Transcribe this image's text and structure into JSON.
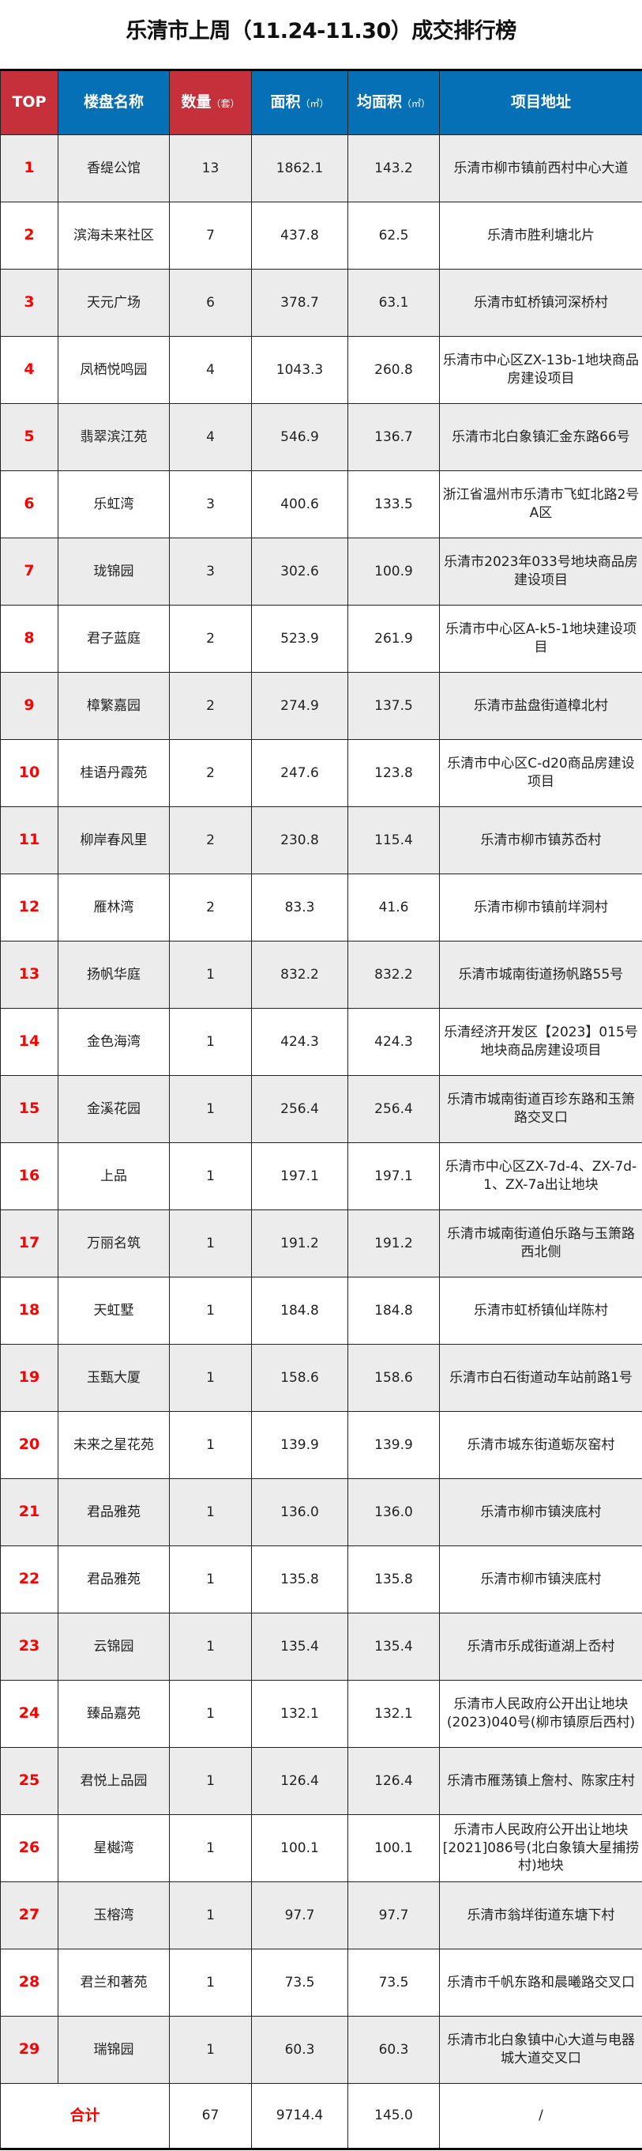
{
  "title": "乐清市上周（11.24-11.30）成交排行榜",
  "colors": {
    "header_blue": "#0670b6",
    "header_red": "#c6303a",
    "rank_red": "#ff0000",
    "row_gray": "#ececec"
  },
  "headers": {
    "rank": "TOP",
    "name": "楼盘名称",
    "count": "数量",
    "count_unit": "（套）",
    "area": "面积",
    "area_unit": "（㎡）",
    "avg_area": "均面积",
    "avg_area_unit": "（㎡）",
    "address": "项目地址"
  },
  "rows": [
    {
      "rank": "1",
      "name": "香缇公馆",
      "count": "13",
      "area": "1862.1",
      "avg": "143.2",
      "address": "乐清市柳市镇前西村中心大道"
    },
    {
      "rank": "2",
      "name": "滨海未来社区",
      "count": "7",
      "area": "437.8",
      "avg": "62.5",
      "address": "乐清市胜利塘北片"
    },
    {
      "rank": "3",
      "name": "天元广场",
      "count": "6",
      "area": "378.7",
      "avg": "63.1",
      "address": "乐清市虹桥镇河深桥村"
    },
    {
      "rank": "4",
      "name": "凤栖悦鸣园",
      "count": "4",
      "area": "1043.3",
      "avg": "260.8",
      "address": "乐清市中心区ZX-13b-1地块商品房建设项目"
    },
    {
      "rank": "5",
      "name": "翡翠滨江苑",
      "count": "4",
      "area": "546.9",
      "avg": "136.7",
      "address": "乐清市北白象镇汇金东路66号"
    },
    {
      "rank": "6",
      "name": "乐虹湾",
      "count": "3",
      "area": "400.6",
      "avg": "133.5",
      "address": "浙江省温州市乐清市飞虹北路2号A区"
    },
    {
      "rank": "7",
      "name": "珑锦园",
      "count": "3",
      "area": "302.6",
      "avg": "100.9",
      "address": "乐清市2023年033号地块商品房建设项目"
    },
    {
      "rank": "8",
      "name": "君子蓝庭",
      "count": "2",
      "area": "523.9",
      "avg": "261.9",
      "address": "乐清市中心区A-k5-1地块建设项目"
    },
    {
      "rank": "9",
      "name": "樟繁嘉园",
      "count": "2",
      "area": "274.9",
      "avg": "137.5",
      "address": "乐清市盐盘街道樟北村"
    },
    {
      "rank": "10",
      "name": "桂语丹霞苑",
      "count": "2",
      "area": "247.6",
      "avg": "123.8",
      "address": "乐清市中心区C-d20商品房建设项目"
    },
    {
      "rank": "11",
      "name": "柳岸春风里",
      "count": "2",
      "area": "230.8",
      "avg": "115.4",
      "address": "乐清市柳市镇苏岙村"
    },
    {
      "rank": "12",
      "name": "雁林湾",
      "count": "2",
      "area": "83.3",
      "avg": "41.6",
      "address": "乐清市柳市镇前垟洞村"
    },
    {
      "rank": "13",
      "name": "扬帆华庭",
      "count": "1",
      "area": "832.2",
      "avg": "832.2",
      "address": "乐清市城南街道扬帆路55号"
    },
    {
      "rank": "14",
      "name": "金色海湾",
      "count": "1",
      "area": "424.3",
      "avg": "424.3",
      "address": "乐清经济开发区【2023】015号地块商品房建设项目"
    },
    {
      "rank": "15",
      "name": "金溪花园",
      "count": "1",
      "area": "256.4",
      "avg": "256.4",
      "address": "乐清市城南街道百珍东路和玉箫路交叉口"
    },
    {
      "rank": "16",
      "name": "上品",
      "count": "1",
      "area": "197.1",
      "avg": "197.1",
      "address": "乐清市中心区ZX-7d-4、ZX-7d-1、ZX-7a出让地块"
    },
    {
      "rank": "17",
      "name": "万丽名筑",
      "count": "1",
      "area": "191.2",
      "avg": "191.2",
      "address": "乐清市城南街道伯乐路与玉箫路西北侧"
    },
    {
      "rank": "18",
      "name": "天虹墅",
      "count": "1",
      "area": "184.8",
      "avg": "184.8",
      "address": "乐清市虹桥镇仙垟陈村"
    },
    {
      "rank": "19",
      "name": "玉甄大厦",
      "count": "1",
      "area": "158.6",
      "avg": "158.6",
      "address": "乐清市白石街道动车站前路1号"
    },
    {
      "rank": "20",
      "name": "未来之星花苑",
      "count": "1",
      "area": "139.9",
      "avg": "139.9",
      "address": "乐清市城东街道蛎灰窑村"
    },
    {
      "rank": "21",
      "name": "君品雅苑",
      "count": "1",
      "area": "136.0",
      "avg": "136.0",
      "address": "乐清市柳市镇浃底村"
    },
    {
      "rank": "22",
      "name": "君品雅苑",
      "count": "1",
      "area": "135.8",
      "avg": "135.8",
      "address": "乐清市柳市镇浃底村"
    },
    {
      "rank": "23",
      "name": "云锦园",
      "count": "1",
      "area": "135.4",
      "avg": "135.4",
      "address": "乐清市乐成街道湖上岙村"
    },
    {
      "rank": "24",
      "name": "臻品嘉苑",
      "count": "1",
      "area": "132.1",
      "avg": "132.1",
      "address": "乐清市人民政府公开出让地块(2023)040号(柳市镇原后西村)"
    },
    {
      "rank": "25",
      "name": "君悦上品园",
      "count": "1",
      "area": "126.4",
      "avg": "126.4",
      "address": "乐清市雁荡镇上詹村、陈家庄村"
    },
    {
      "rank": "26",
      "name": "星樾湾",
      "count": "1",
      "area": "100.1",
      "avg": "100.1",
      "address": "乐清市人民政府公开出让地块[2021]086号(北白象镇大星捕捞村)地块"
    },
    {
      "rank": "27",
      "name": "玉榕湾",
      "count": "1",
      "area": "97.7",
      "avg": "97.7",
      "address": "乐清市翁垟街道东塘下村"
    },
    {
      "rank": "28",
      "name": "君兰和著苑",
      "count": "1",
      "area": "73.5",
      "avg": "73.5",
      "address": "乐清市千帆东路和晨曦路交叉口"
    },
    {
      "rank": "29",
      "name": "瑞锦园",
      "count": "1",
      "area": "60.3",
      "avg": "60.3",
      "address": "乐清市北白象镇中心大道与电器城大道交叉口"
    }
  ],
  "total": {
    "label": "合计",
    "count": "67",
    "area": "9714.4",
    "avg": "145.0",
    "address": "/"
  }
}
